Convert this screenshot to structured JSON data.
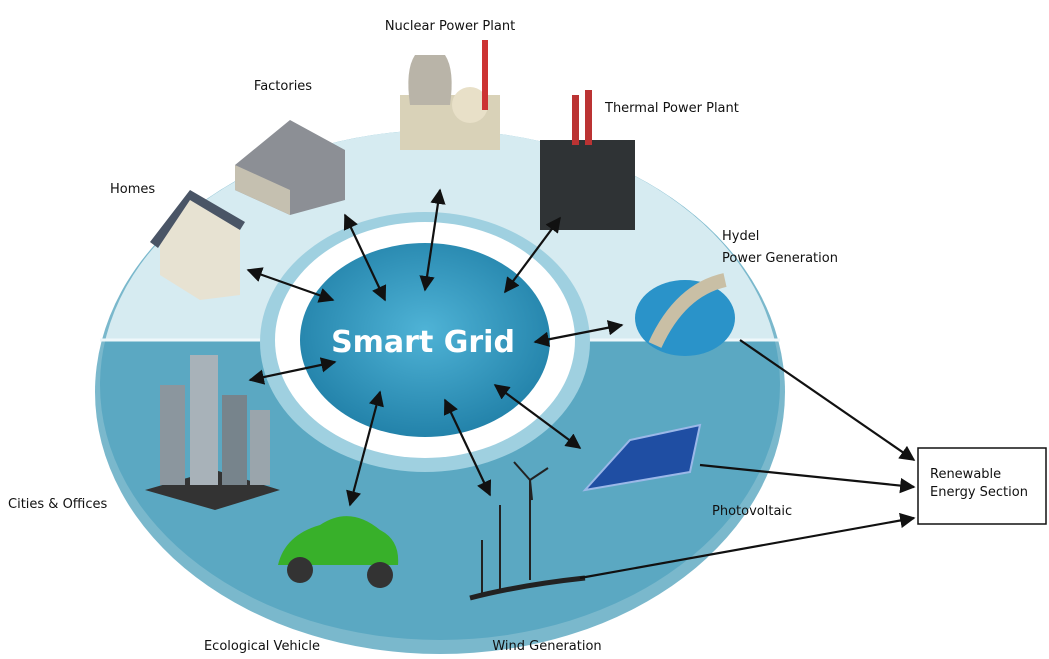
{
  "center": {
    "label": "Smart Grid"
  },
  "nodes": [
    {
      "label": "Nuclear Power Plant"
    },
    {
      "label": "Factories"
    },
    {
      "label": "Thermal Power Plant"
    },
    {
      "label": "Homes"
    },
    {
      "lines": [
        "Hydel",
        "Power Generation"
      ]
    },
    {
      "label": "Cities & Offices"
    },
    {
      "label": "Photovoltaic"
    },
    {
      "label": "Ecological Vehicle"
    },
    {
      "label": "Wind Generation"
    }
  ],
  "renewable_box": {
    "lines": [
      "Renewable",
      "Energy Section"
    ]
  }
}
